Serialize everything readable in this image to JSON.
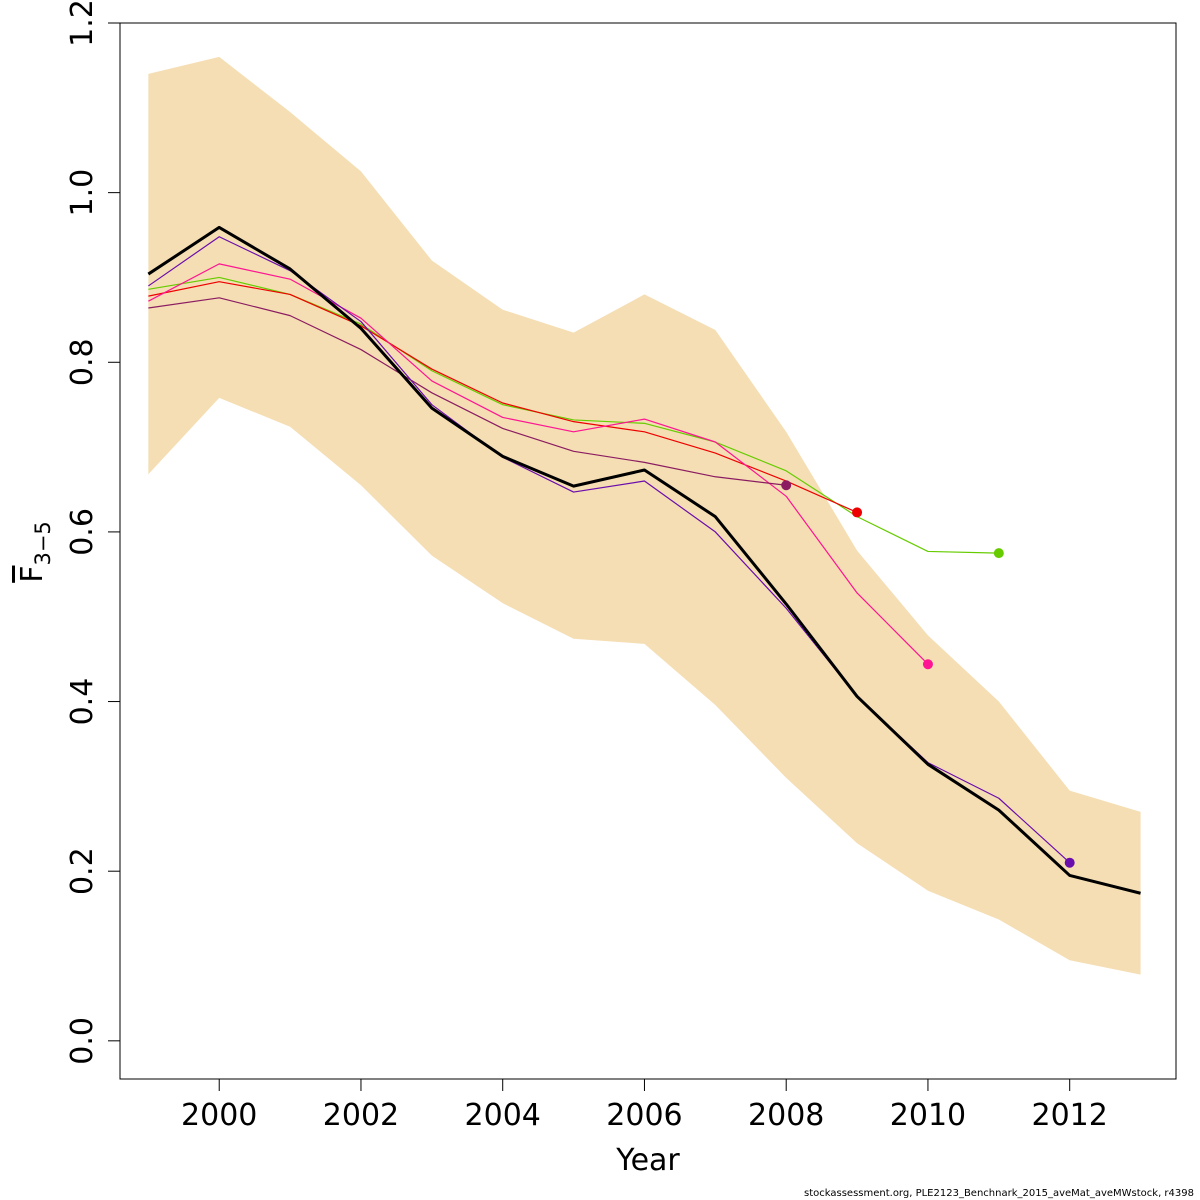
{
  "chart_data": {
    "type": "line",
    "title": "",
    "xlabel": "Year",
    "ylabel_main": "F",
    "ylabel_sub": "3−5",
    "xlim": [
      1998.6,
      2013.5
    ],
    "ylim": [
      -0.045,
      1.2
    ],
    "x_ticks": [
      2000,
      2002,
      2004,
      2006,
      2008,
      2010,
      2012
    ],
    "y_ticks": [
      0.0,
      0.2,
      0.4,
      0.6,
      0.8,
      1.0,
      1.2
    ],
    "y_tick_labels": [
      "0.0",
      "0.2",
      "0.4",
      "0.6",
      "0.8",
      "1.0",
      "1.2"
    ],
    "grid": false,
    "band": {
      "color": "#F5DEB3",
      "x": [
        1999,
        2000,
        2001,
        2002,
        2003,
        2004,
        2005,
        2006,
        2007,
        2008,
        2009,
        2010,
        2011,
        2012,
        2013
      ],
      "upper": [
        1.14,
        1.16,
        1.095,
        1.025,
        0.92,
        0.862,
        0.835,
        0.88,
        0.838,
        0.718,
        0.578,
        0.478,
        0.4,
        0.295,
        0.27
      ],
      "lower": [
        0.668,
        0.758,
        0.724,
        0.655,
        0.572,
        0.516,
        0.474,
        0.468,
        0.396,
        0.31,
        0.233,
        0.177,
        0.143,
        0.095,
        0.078
      ]
    },
    "series": [
      {
        "color": "#66CC00",
        "endpoint": true,
        "x": [
          1999,
          2000,
          2001,
          2002,
          2003,
          2004,
          2005,
          2006,
          2007,
          2008,
          2009,
          2010,
          2011
        ],
        "values": [
          0.886,
          0.9,
          0.88,
          0.845,
          0.79,
          0.75,
          0.732,
          0.728,
          0.706,
          0.672,
          0.618,
          0.577,
          0.575
        ]
      },
      {
        "color": "#EE0000",
        "endpoint": true,
        "x": [
          1999,
          2000,
          2001,
          2002,
          2003,
          2004,
          2005,
          2006,
          2007,
          2008,
          2009
        ],
        "values": [
          0.878,
          0.895,
          0.88,
          0.843,
          0.792,
          0.752,
          0.73,
          0.718,
          0.693,
          0.66,
          0.623
        ]
      },
      {
        "color": "#FF1493",
        "endpoint": true,
        "x": [
          1999,
          2000,
          2001,
          2002,
          2003,
          2004,
          2005,
          2006,
          2007,
          2008,
          2009,
          2010
        ],
        "values": [
          0.872,
          0.916,
          0.898,
          0.852,
          0.778,
          0.735,
          0.718,
          0.733,
          0.706,
          0.642,
          0.528,
          0.444
        ]
      },
      {
        "color": "#8B1C62",
        "endpoint": true,
        "x": [
          1999,
          2000,
          2001,
          2002,
          2003,
          2004,
          2005,
          2006,
          2007,
          2008
        ],
        "values": [
          0.864,
          0.876,
          0.855,
          0.815,
          0.764,
          0.722,
          0.695,
          0.682,
          0.665,
          0.655
        ]
      },
      {
        "color": "#6A0DAD",
        "endpoint": true,
        "x": [
          1999,
          2000,
          2001,
          2002,
          2003,
          2004,
          2005,
          2006,
          2007,
          2008,
          2009,
          2010,
          2011,
          2012
        ],
        "values": [
          0.89,
          0.948,
          0.908,
          0.848,
          0.75,
          0.688,
          0.647,
          0.66,
          0.6,
          0.51,
          0.406,
          0.328,
          0.286,
          0.21
        ]
      },
      {
        "color": "#000000",
        "endpoint": false,
        "bold": true,
        "x": [
          1999,
          2000,
          2001,
          2002,
          2003,
          2004,
          2005,
          2006,
          2007,
          2008,
          2009,
          2010,
          2011,
          2012,
          2013
        ],
        "values": [
          0.904,
          0.959,
          0.91,
          0.84,
          0.746,
          0.689,
          0.654,
          0.673,
          0.618,
          0.515,
          0.406,
          0.326,
          0.272,
          0.195,
          0.174
        ]
      }
    ]
  },
  "footer": {
    "credit": "stockassessment.org, PLE2123_Benchnark_2015_aveMat_aveMWstock, r4398"
  }
}
